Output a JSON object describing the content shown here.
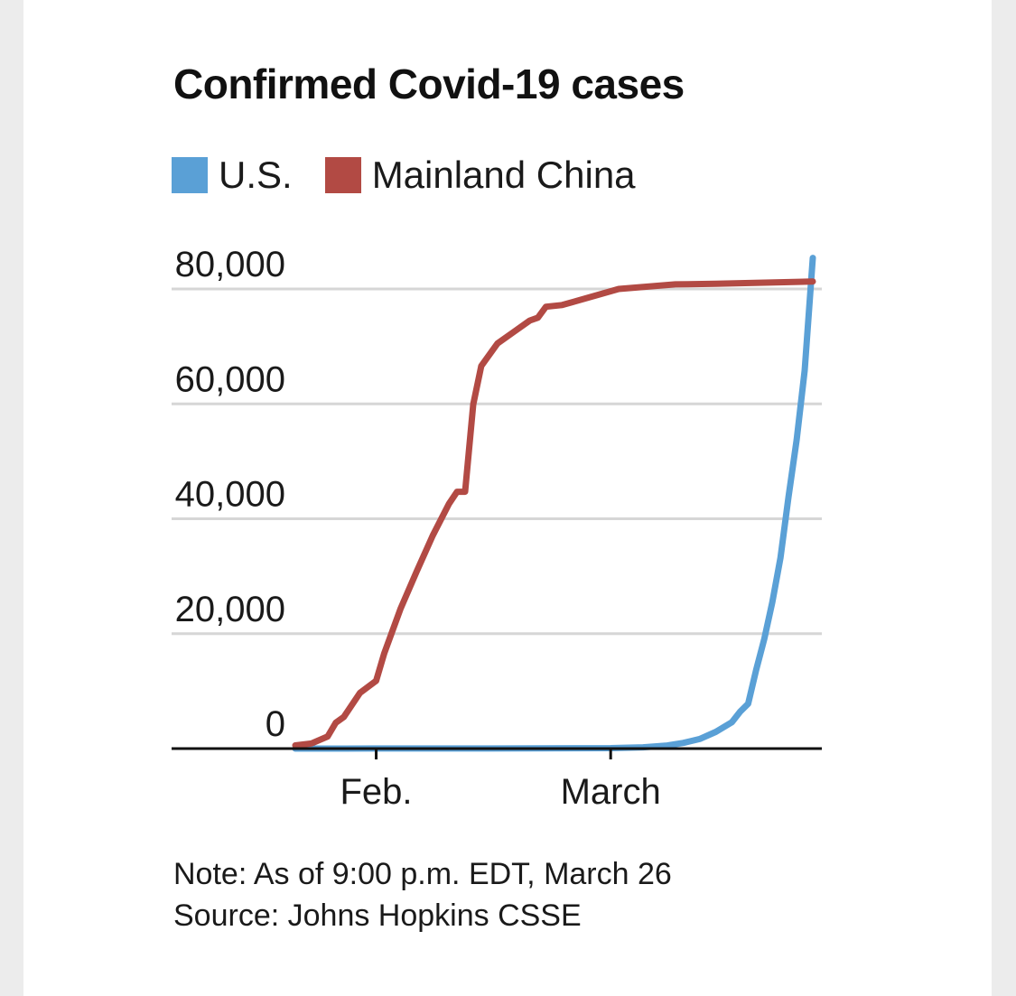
{
  "chart_data": {
    "type": "line",
    "title": "Confirmed Covid-19 cases",
    "note": "Note: As of 9:00 p.m. EDT, March 26",
    "source": "Source: Johns Hopkins CSSE",
    "x_ticks": [
      {
        "date": "2020-02-01",
        "label": "Feb."
      },
      {
        "date": "2020-03-01",
        "label": "March"
      }
    ],
    "xlim": [
      "2020-01-22",
      "2020-03-26"
    ],
    "ylim": [
      0,
      80000
    ],
    "y_ticks": [
      {
        "value": 0,
        "label": "0"
      },
      {
        "value": 20000,
        "label": "20,000"
      },
      {
        "value": 40000,
        "label": "40,000"
      },
      {
        "value": 60000,
        "label": "60,000"
      },
      {
        "value": 80000,
        "label": "80,000"
      }
    ],
    "grid": true,
    "legend_position": "top-left",
    "series": [
      {
        "name": "U.S.",
        "color": "#5aa0d6",
        "points": [
          [
            "2020-01-22",
            1
          ],
          [
            "2020-02-01",
            8
          ],
          [
            "2020-02-15",
            15
          ],
          [
            "2020-03-01",
            75
          ],
          [
            "2020-03-05",
            220
          ],
          [
            "2020-03-08",
            540
          ],
          [
            "2020-03-10",
            990
          ],
          [
            "2020-03-12",
            1660
          ],
          [
            "2020-03-14",
            2900
          ],
          [
            "2020-03-16",
            4600
          ],
          [
            "2020-03-17",
            6400
          ],
          [
            "2020-03-18",
            7800
          ],
          [
            "2020-03-19",
            13700
          ],
          [
            "2020-03-20",
            19100
          ],
          [
            "2020-03-21",
            25500
          ],
          [
            "2020-03-22",
            33200
          ],
          [
            "2020-03-23",
            43800
          ],
          [
            "2020-03-24",
            53700
          ],
          [
            "2020-03-25",
            65800
          ],
          [
            "2020-03-26",
            85400
          ]
        ]
      },
      {
        "name": "Mainland China",
        "color": "#b24a44",
        "points": [
          [
            "2020-01-22",
            550
          ],
          [
            "2020-01-24",
            900
          ],
          [
            "2020-01-26",
            2100
          ],
          [
            "2020-01-27",
            4500
          ],
          [
            "2020-01-28",
            5500
          ],
          [
            "2020-01-30",
            9700
          ],
          [
            "2020-02-01",
            11800
          ],
          [
            "2020-02-02",
            16600
          ],
          [
            "2020-02-04",
            24300
          ],
          [
            "2020-02-06",
            30800
          ],
          [
            "2020-02-08",
            37100
          ],
          [
            "2020-02-10",
            42600
          ],
          [
            "2020-02-11",
            44700
          ],
          [
            "2020-02-12",
            44700
          ],
          [
            "2020-02-13",
            59900
          ],
          [
            "2020-02-14",
            66600
          ],
          [
            "2020-02-16",
            70500
          ],
          [
            "2020-02-18",
            72500
          ],
          [
            "2020-02-20",
            74500
          ],
          [
            "2020-02-21",
            75000
          ],
          [
            "2020-02-22",
            76900
          ],
          [
            "2020-02-24",
            77200
          ],
          [
            "2020-02-28",
            78800
          ],
          [
            "2020-03-02",
            80000
          ],
          [
            "2020-03-09",
            80800
          ],
          [
            "2020-03-14",
            80900
          ],
          [
            "2020-03-26",
            81300
          ]
        ]
      }
    ]
  }
}
